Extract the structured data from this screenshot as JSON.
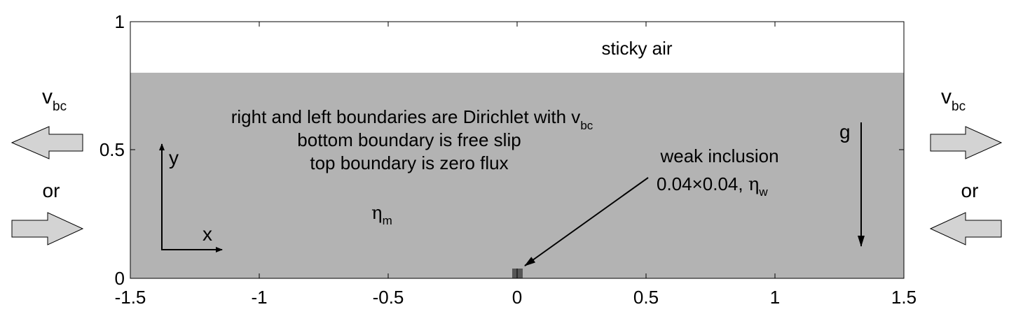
{
  "figure": {
    "x_ticks": [
      "-1.5",
      "-1",
      "-0.5",
      "0",
      "0.5",
      "1",
      "1.5"
    ],
    "y_ticks": [
      "0",
      "0.5",
      "1"
    ],
    "colors": {
      "medium": "#b3b3b3",
      "air": "#ffffff",
      "inclusion": "#555555",
      "arrow_fill": "#d3d3d3",
      "stroke": "#000000"
    },
    "regions": {
      "sticky_air": "sticky air",
      "matrix_symbol": "η",
      "matrix_sub": "m",
      "layer_top_y": 0.8
    },
    "boundary_text": {
      "line1_prefix": "right and left boundaries are Dirichlet with v",
      "line1_sub": "bc",
      "line2": "bottom boundary is free slip",
      "line3": "top boundary is zero flux"
    },
    "inclusion": {
      "label_line1": "weak inclusion",
      "label_line2_prefix": "0.04×0.04, ",
      "eta_symbol": "η",
      "eta_sub": "w",
      "size": 0.04
    },
    "axes_glyph": {
      "x": "x",
      "y": "y"
    },
    "gravity_label": "g",
    "left_side": {
      "v_main": "v",
      "v_sub": "bc",
      "or": "or"
    },
    "right_side": {
      "v_main": "v",
      "v_sub": "bc",
      "or": "or"
    }
  }
}
